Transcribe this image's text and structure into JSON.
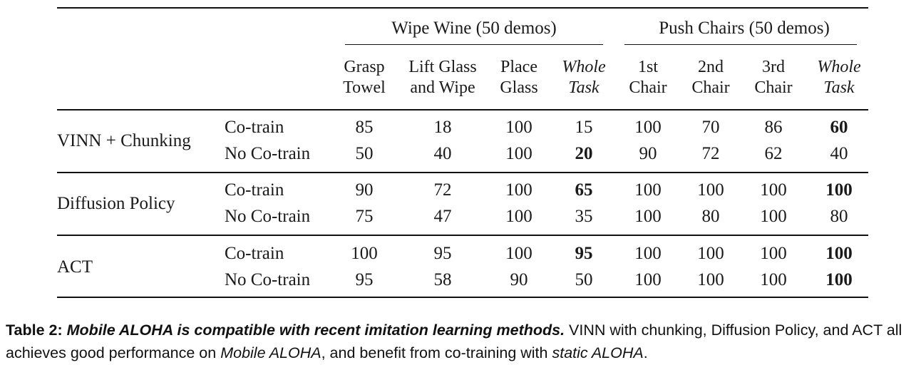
{
  "table": {
    "groups": [
      {
        "label": "Wipe Wine (50 demos)"
      },
      {
        "label": "Push Chairs (50 demos)"
      }
    ],
    "columns": [
      {
        "line1": "Grasp",
        "line2": "Towel",
        "italic": false
      },
      {
        "line1": "Lift Glass",
        "line2": "and Wipe",
        "italic": false
      },
      {
        "line1": "Place",
        "line2": "Glass",
        "italic": false
      },
      {
        "line1": "Whole",
        "line2": "Task",
        "italic": true
      },
      {
        "line1": "1st",
        "line2": "Chair",
        "italic": false
      },
      {
        "line1": "2nd",
        "line2": "Chair",
        "italic": false
      },
      {
        "line1": "3rd",
        "line2": "Chair",
        "italic": false
      },
      {
        "line1": "Whole",
        "line2": "Task",
        "italic": true
      }
    ],
    "methods": [
      {
        "name": "VINN + Chunking",
        "rows": [
          {
            "label": "Co-train",
            "values": [
              "85",
              "18",
              "100",
              "15",
              "100",
              "70",
              "86",
              "60"
            ],
            "bold": [
              7
            ]
          },
          {
            "label": "No Co-train",
            "values": [
              "50",
              "40",
              "100",
              "20",
              "90",
              "72",
              "62",
              "40"
            ],
            "bold": [
              3
            ]
          }
        ]
      },
      {
        "name": "Diffusion Policy",
        "rows": [
          {
            "label": "Co-train",
            "values": [
              "90",
              "72",
              "100",
              "65",
              "100",
              "100",
              "100",
              "100"
            ],
            "bold": [
              3,
              7
            ]
          },
          {
            "label": "No Co-train",
            "values": [
              "75",
              "47",
              "100",
              "35",
              "100",
              "80",
              "100",
              "80"
            ],
            "bold": []
          }
        ]
      },
      {
        "name": "ACT",
        "rows": [
          {
            "label": "Co-train",
            "values": [
              "100",
              "95",
              "100",
              "95",
              "100",
              "100",
              "100",
              "100"
            ],
            "bold": [
              3,
              7
            ]
          },
          {
            "label": "No Co-train",
            "values": [
              "95",
              "58",
              "90",
              "50",
              "100",
              "100",
              "100",
              "100"
            ],
            "bold": [
              7
            ]
          }
        ]
      }
    ]
  },
  "caption": {
    "label": "Table 2:",
    "title": "Mobile ALOHA is compatible with recent imitation learning methods.",
    "text1": " VINN with chunking, Diffusion Policy, and ACT all achieves good performance on ",
    "em1": "Mobile ALOHA",
    "text2": ", and benefit from co-training with ",
    "em2": "static ALOHA",
    "text3": "."
  }
}
